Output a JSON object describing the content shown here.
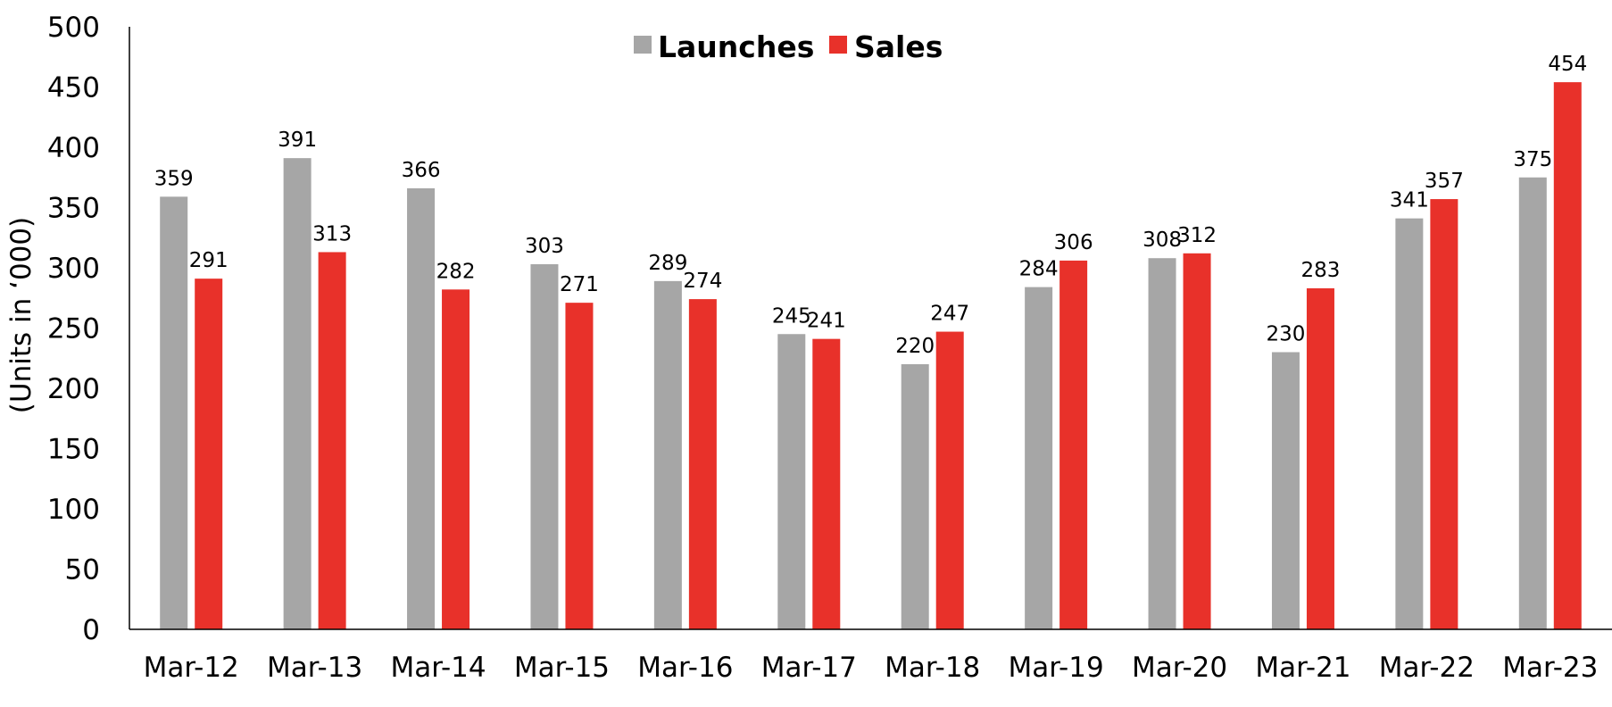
{
  "chart_data": {
    "type": "bar",
    "categories": [
      "Mar-12",
      "Mar-13",
      "Mar-14",
      "Mar-15",
      "Mar-16",
      "Mar-17",
      "Mar-18",
      "Mar-19",
      "Mar-20",
      "Mar-21",
      "Mar-22",
      "Mar-23"
    ],
    "series": [
      {
        "name": "Launches",
        "color": "#a6a6a6",
        "values": [
          359,
          391,
          366,
          303,
          289,
          245,
          220,
          284,
          308,
          230,
          341,
          375
        ]
      },
      {
        "name": "Sales",
        "color": "#e8312a",
        "values": [
          291,
          313,
          282,
          271,
          274,
          241,
          247,
          306,
          312,
          283,
          357,
          454
        ]
      }
    ],
    "title": "",
    "xlabel": "",
    "ylabel": "(Units in ‘000)",
    "ylim": [
      0,
      500
    ],
    "yticks": [
      "0",
      "50",
      "100",
      "150",
      "200",
      "250",
      "300",
      "350",
      "400",
      "450",
      "500"
    ],
    "grid": false,
    "legend_position": "top-center",
    "data_labels": true
  }
}
